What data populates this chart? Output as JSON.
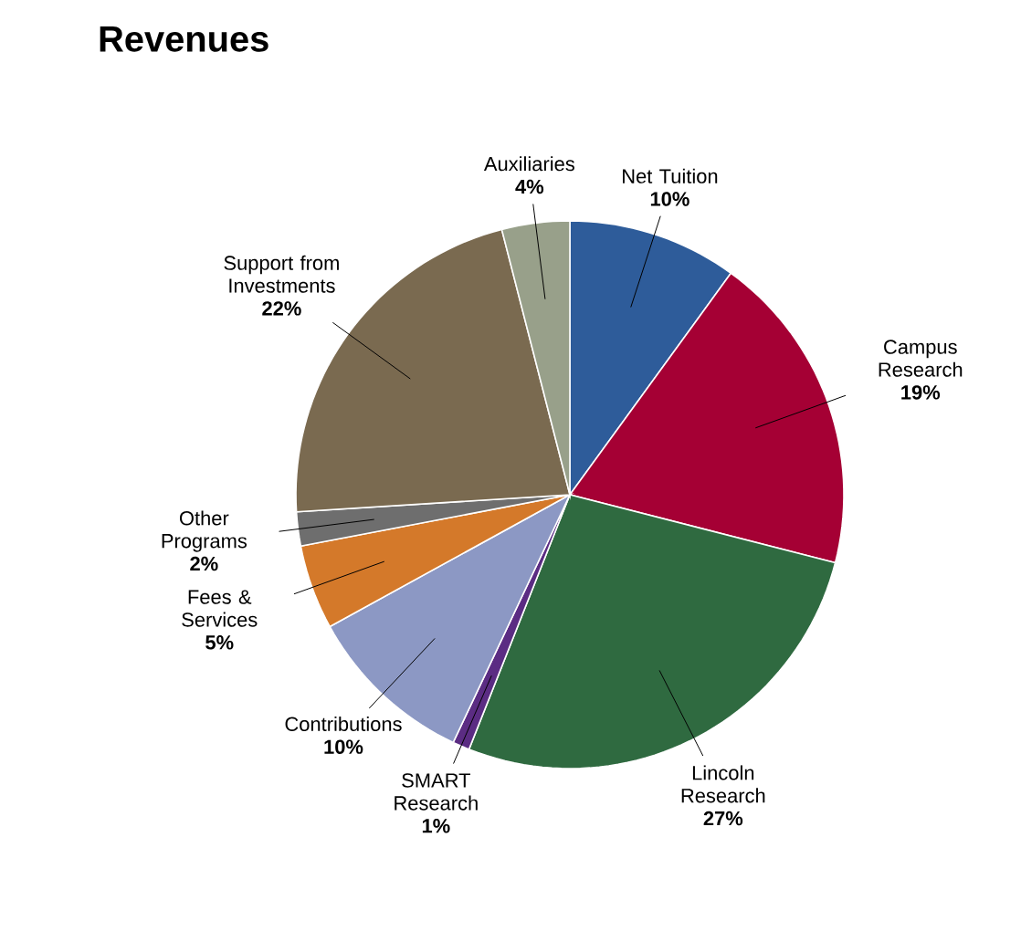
{
  "chart_data": {
    "type": "pie",
    "title": "Revenues",
    "categories": [
      "Net Tuition",
      "Campus Research",
      "Lincoln Research",
      "SMART Research",
      "Contributions",
      "Fees & Services",
      "Other Programs",
      "Support from Investments",
      "Auxiliaries"
    ],
    "values": [
      10,
      19,
      27,
      1,
      10,
      5,
      2,
      22,
      4
    ],
    "value_labels": [
      "10%",
      "19%",
      "27%",
      "1%",
      "10%",
      "5%",
      "2%",
      "22%",
      "4%"
    ],
    "colors": [
      "#2e5c9a",
      "#a50034",
      "#2f6a40",
      "#5b2c83",
      "#8c98c4",
      "#d4792a",
      "#6e6e6e",
      "#7a6a50",
      "#98a08a"
    ]
  }
}
